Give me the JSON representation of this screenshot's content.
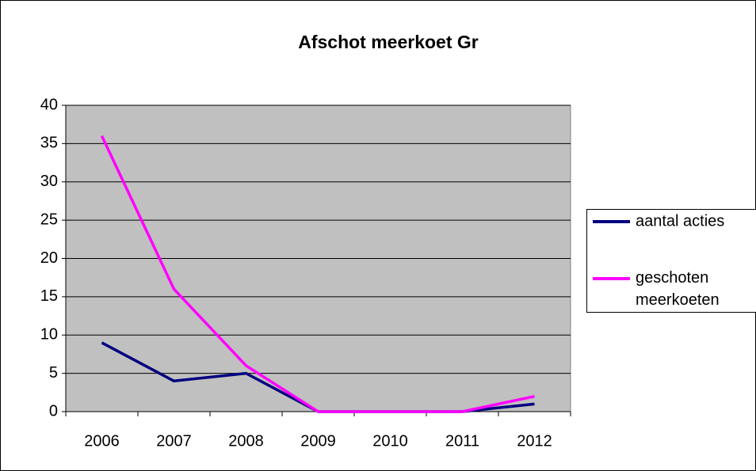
{
  "chart_data": {
    "type": "line",
    "title": "Afschot meerkoet Gr",
    "categories": [
      "2006",
      "2007",
      "2008",
      "2009",
      "2010",
      "2011",
      "2012"
    ],
    "series": [
      {
        "name": "aantal acties",
        "color": "#000080",
        "values": [
          9,
          4,
          5,
          0,
          0,
          0,
          1
        ]
      },
      {
        "name": "geschoten meerkoeten",
        "color": "#ff00ff",
        "values": [
          36,
          16,
          6,
          0,
          0,
          0,
          2
        ]
      }
    ],
    "ylim": [
      0,
      40
    ],
    "yticks": [
      0,
      5,
      10,
      15,
      20,
      25,
      30,
      35,
      40
    ],
    "grid": true,
    "legend": "right"
  }
}
